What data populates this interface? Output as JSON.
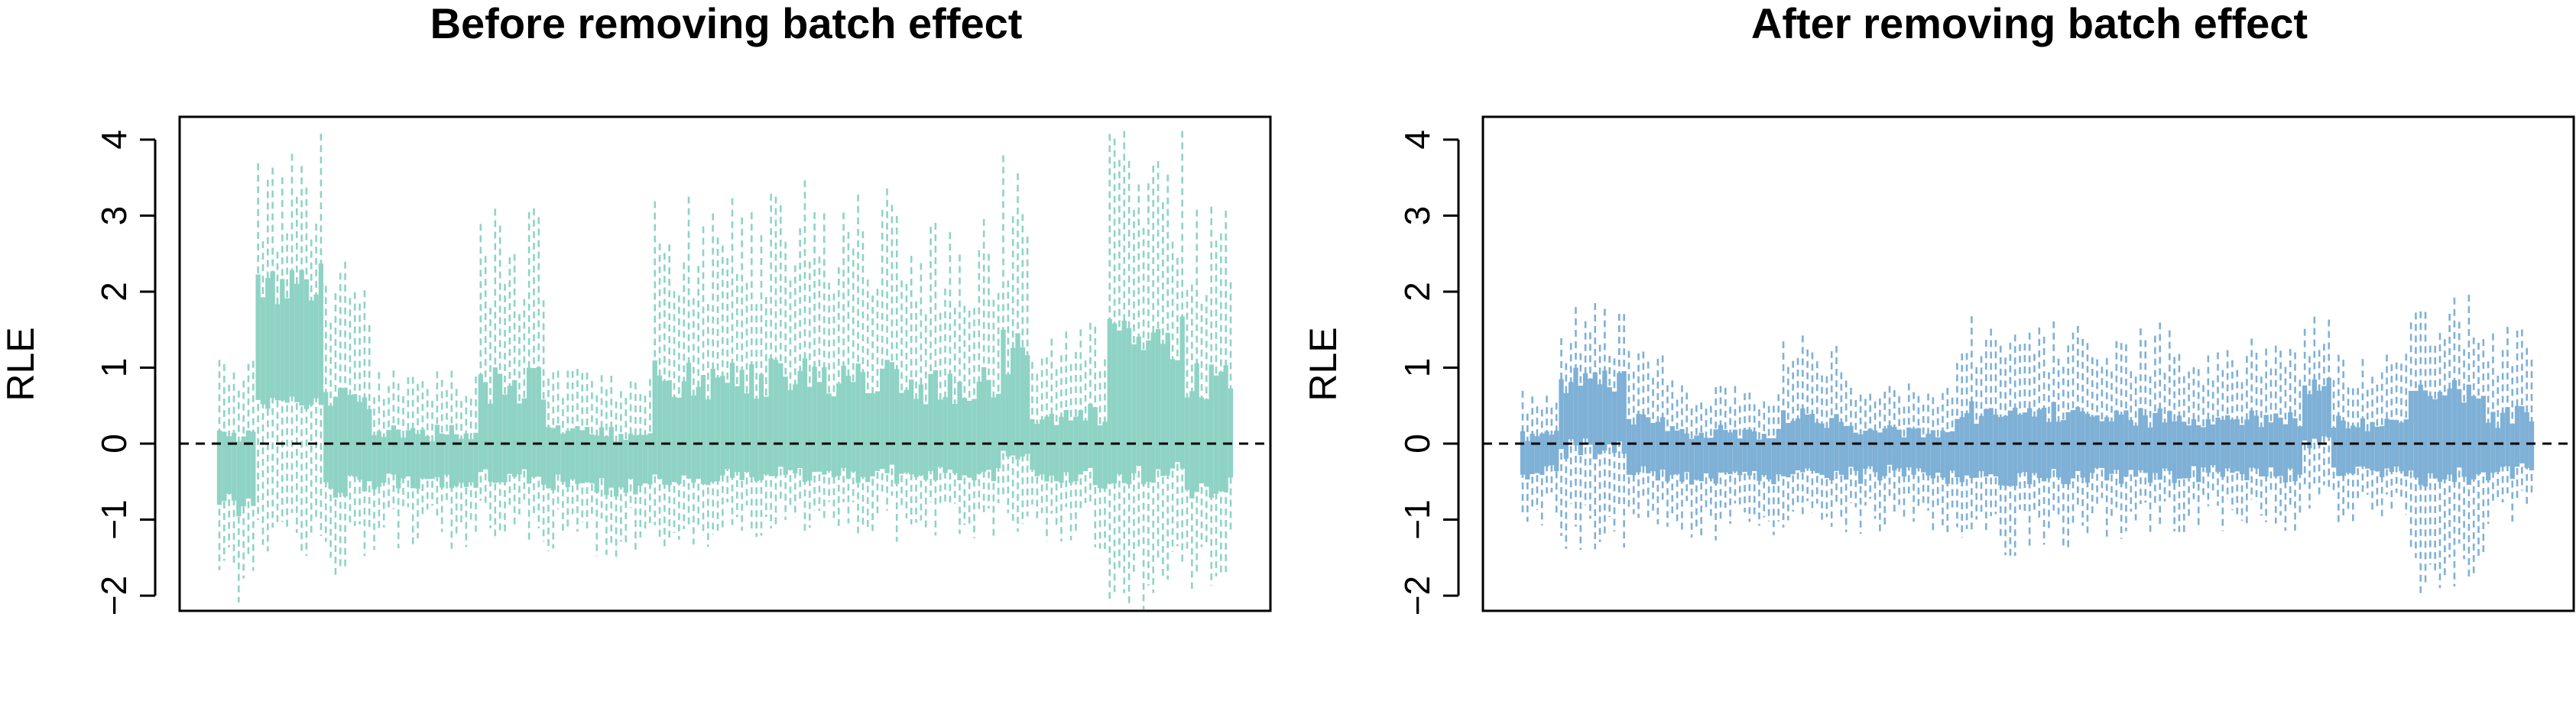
{
  "chart_data": [
    {
      "type": "bar",
      "subtype": "rle-boxplot",
      "title": "Before removing batch effect",
      "xlabel": "",
      "ylabel": "RLE",
      "ylim": [
        -2.2,
        4.3
      ],
      "yticks": [
        -2,
        -1,
        0,
        1,
        2,
        3,
        4
      ],
      "ytick_labels": [
        "−2",
        "−1",
        "0",
        "1",
        "2",
        "3",
        "4"
      ],
      "reference_line": 0,
      "color": "#8fd3c5",
      "n_samples": 210,
      "batch_segments": [
        {
          "samples": 8,
          "median": -0.3,
          "upper_whisker": 1.2,
          "lower_whisker": -2.2
        },
        {
          "samples": 14,
          "median": 1.5,
          "upper_whisker": 4.1,
          "lower_whisker": -1.6
        },
        {
          "samples": 10,
          "median": -0.1,
          "upper_whisker": 2.4,
          "lower_whisker": -1.8
        },
        {
          "samples": 22,
          "median": -0.2,
          "upper_whisker": 1.0,
          "lower_whisker": -1.4
        },
        {
          "samples": 14,
          "median": -0.1,
          "upper_whisker": 3.1,
          "lower_whisker": -1.3
        },
        {
          "samples": 22,
          "median": -0.2,
          "upper_whisker": 1.0,
          "lower_whisker": -1.5
        },
        {
          "samples": 26,
          "median": -0.1,
          "upper_whisker": 3.3,
          "lower_whisker": -1.4
        },
        {
          "samples": 24,
          "median": -0.1,
          "upper_whisker": 3.5,
          "lower_whisker": -1.2
        },
        {
          "samples": 22,
          "median": -0.1,
          "upper_whisker": 3.0,
          "lower_whisker": -1.3
        },
        {
          "samples": 6,
          "median": 0.3,
          "upper_whisker": 3.8,
          "lower_whisker": -1.2
        },
        {
          "samples": 16,
          "median": -0.1,
          "upper_whisker": 1.6,
          "lower_whisker": -1.4
        },
        {
          "samples": 16,
          "median": 0.3,
          "upper_whisker": 4.3,
          "lower_whisker": -2.2
        },
        {
          "samples": 10,
          "median": -0.1,
          "upper_whisker": 3.3,
          "lower_whisker": -2.0
        }
      ]
    },
    {
      "type": "bar",
      "subtype": "rle-boxplot",
      "title": "After removing batch effect",
      "xlabel": "",
      "ylabel": "RLE",
      "ylim": [
        -2.2,
        4.3
      ],
      "yticks": [
        -2,
        -1,
        0,
        1,
        2,
        3,
        4
      ],
      "ytick_labels": [
        "−2",
        "−1",
        "0",
        "1",
        "2",
        "3",
        "4"
      ],
      "reference_line": 0,
      "color": "#7fb0d6",
      "n_samples": 210,
      "batch_segments": [
        {
          "samples": 8,
          "median": -0.1,
          "upper_whisker": 0.7,
          "lower_whisker": -1.1
        },
        {
          "samples": 14,
          "median": 0.5,
          "upper_whisker": 1.9,
          "lower_whisker": -1.4
        },
        {
          "samples": 10,
          "median": -0.1,
          "upper_whisker": 1.3,
          "lower_whisker": -1.1
        },
        {
          "samples": 22,
          "median": -0.1,
          "upper_whisker": 0.8,
          "lower_whisker": -1.3
        },
        {
          "samples": 14,
          "median": -0.1,
          "upper_whisker": 1.5,
          "lower_whisker": -1.2
        },
        {
          "samples": 22,
          "median": -0.1,
          "upper_whisker": 0.8,
          "lower_whisker": -1.2
        },
        {
          "samples": 26,
          "median": -0.1,
          "upper_whisker": 1.7,
          "lower_whisker": -1.5
        },
        {
          "samples": 24,
          "median": -0.1,
          "upper_whisker": 1.6,
          "lower_whisker": -1.3
        },
        {
          "samples": 22,
          "median": -0.1,
          "upper_whisker": 1.4,
          "lower_whisker": -1.2
        },
        {
          "samples": 6,
          "median": 0.4,
          "upper_whisker": 1.8,
          "lower_whisker": -0.9
        },
        {
          "samples": 16,
          "median": -0.1,
          "upper_whisker": 1.2,
          "lower_whisker": -1.1
        },
        {
          "samples": 16,
          "median": 0.2,
          "upper_whisker": 2.0,
          "lower_whisker": -2.1
        },
        {
          "samples": 10,
          "median": -0.1,
          "upper_whisker": 1.6,
          "lower_whisker": -1.1
        }
      ]
    }
  ]
}
